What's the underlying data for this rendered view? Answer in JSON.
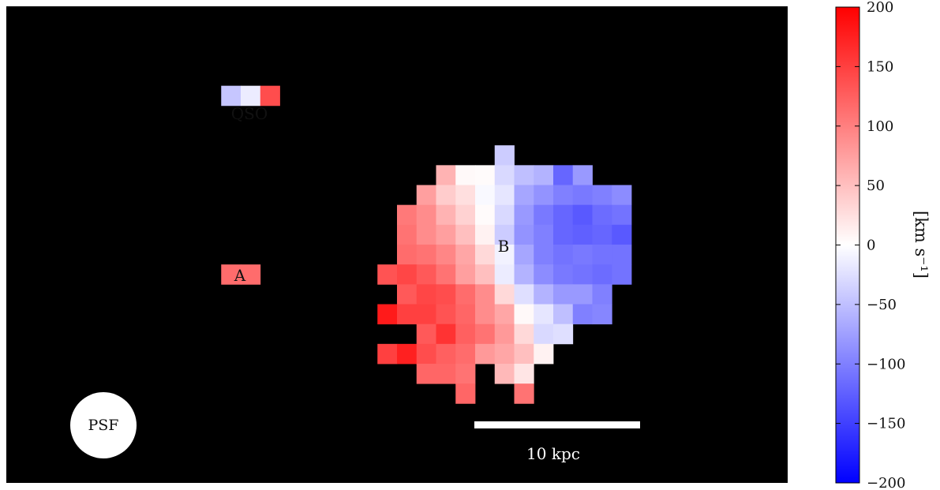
{
  "chart_data": {
    "type": "heatmap",
    "title": "",
    "colorbar": {
      "label": "[km s⁻¹]",
      "range": [
        -200,
        200
      ],
      "ticks": [
        200,
        150,
        100,
        50,
        0,
        -50,
        -100,
        -150,
        -200
      ],
      "tick_labels": [
        "200",
        "150",
        "100",
        "50",
        "0",
        "−50",
        "−100",
        "−150",
        "−200"
      ],
      "colormap": "bwr",
      "color_low": "#0000ff",
      "color_mid": "#ffffff",
      "color_high": "#ff0000"
    },
    "background_color": "#000000",
    "grid": false,
    "grid_size": [
      40,
      24
    ],
    "cells": [
      [
        25,
        7,
        -40
      ],
      [
        22,
        8,
        60
      ],
      [
        23,
        8,
        5
      ],
      [
        24,
        8,
        3
      ],
      [
        25,
        8,
        -30
      ],
      [
        26,
        8,
        -50
      ],
      [
        27,
        8,
        -60
      ],
      [
        28,
        8,
        -120
      ],
      [
        29,
        8,
        -80
      ],
      [
        21,
        9,
        75
      ],
      [
        22,
        9,
        40
      ],
      [
        23,
        9,
        25
      ],
      [
        24,
        9,
        -5
      ],
      [
        25,
        9,
        -20
      ],
      [
        26,
        9,
        -70
      ],
      [
        27,
        9,
        -85
      ],
      [
        28,
        9,
        -100
      ],
      [
        29,
        9,
        -105
      ],
      [
        30,
        9,
        -100
      ],
      [
        31,
        9,
        -90
      ],
      [
        20,
        10,
        105
      ],
      [
        21,
        10,
        90
      ],
      [
        22,
        10,
        60
      ],
      [
        23,
        10,
        35
      ],
      [
        24,
        10,
        3
      ],
      [
        25,
        10,
        -30
      ],
      [
        26,
        10,
        -80
      ],
      [
        27,
        10,
        -105
      ],
      [
        28,
        10,
        -120
      ],
      [
        29,
        10,
        -130
      ],
      [
        30,
        10,
        -115
      ],
      [
        31,
        10,
        -110
      ],
      [
        20,
        11,
        110
      ],
      [
        21,
        11,
        90
      ],
      [
        22,
        11,
        75
      ],
      [
        23,
        11,
        50
      ],
      [
        24,
        11,
        10
      ],
      [
        25,
        11,
        -40
      ],
      [
        26,
        11,
        -85
      ],
      [
        27,
        11,
        -100
      ],
      [
        28,
        11,
        -120
      ],
      [
        29,
        11,
        -125
      ],
      [
        30,
        11,
        -120
      ],
      [
        31,
        11,
        -130
      ],
      [
        20,
        12,
        115
      ],
      [
        21,
        12,
        110
      ],
      [
        22,
        12,
        95
      ],
      [
        23,
        12,
        70
      ],
      [
        24,
        12,
        30
      ],
      [
        25,
        12,
        -10
      ],
      [
        26,
        12,
        -70
      ],
      [
        27,
        12,
        -100
      ],
      [
        28,
        12,
        -110
      ],
      [
        29,
        12,
        -105
      ],
      [
        30,
        12,
        -110
      ],
      [
        31,
        12,
        -110
      ],
      [
        19,
        13,
        135
      ],
      [
        20,
        13,
        145
      ],
      [
        21,
        13,
        130
      ],
      [
        22,
        13,
        110
      ],
      [
        23,
        13,
        75
      ],
      [
        24,
        13,
        50
      ],
      [
        25,
        13,
        -15
      ],
      [
        26,
        13,
        -60
      ],
      [
        27,
        13,
        -90
      ],
      [
        28,
        13,
        -105
      ],
      [
        29,
        13,
        -110
      ],
      [
        30,
        13,
        -115
      ],
      [
        31,
        13,
        -110
      ],
      [
        20,
        14,
        130
      ],
      [
        21,
        14,
        145
      ],
      [
        22,
        14,
        140
      ],
      [
        23,
        14,
        115
      ],
      [
        24,
        14,
        90
      ],
      [
        25,
        14,
        30
      ],
      [
        26,
        14,
        -25
      ],
      [
        27,
        14,
        -60
      ],
      [
        28,
        14,
        -80
      ],
      [
        29,
        14,
        -80
      ],
      [
        30,
        14,
        -100
      ],
      [
        19,
        15,
        180
      ],
      [
        20,
        15,
        150
      ],
      [
        21,
        15,
        150
      ],
      [
        22,
        15,
        135
      ],
      [
        23,
        15,
        120
      ],
      [
        24,
        15,
        90
      ],
      [
        25,
        15,
        70
      ],
      [
        26,
        15,
        5
      ],
      [
        27,
        15,
        -20
      ],
      [
        28,
        15,
        -50
      ],
      [
        29,
        15,
        -100
      ],
      [
        30,
        15,
        -95
      ],
      [
        21,
        16,
        130
      ],
      [
        22,
        16,
        160
      ],
      [
        23,
        16,
        125
      ],
      [
        24,
        16,
        110
      ],
      [
        25,
        16,
        80
      ],
      [
        26,
        16,
        30
      ],
      [
        27,
        16,
        -30
      ],
      [
        28,
        16,
        -25
      ],
      [
        19,
        17,
        150
      ],
      [
        20,
        17,
        175
      ],
      [
        21,
        17,
        140
      ],
      [
        22,
        17,
        125
      ],
      [
        23,
        17,
        115
      ],
      [
        24,
        17,
        80
      ],
      [
        25,
        17,
        70
      ],
      [
        26,
        17,
        50
      ],
      [
        27,
        17,
        10
      ],
      [
        21,
        18,
        120
      ],
      [
        22,
        18,
        120
      ],
      [
        23,
        18,
        110
      ],
      [
        25,
        18,
        55
      ],
      [
        26,
        18,
        20
      ],
      [
        23,
        19,
        120
      ],
      [
        26,
        19,
        110
      ]
    ],
    "labels": [
      "QSO",
      "A",
      "B"
    ],
    "sources": [
      {
        "label": "QSO",
        "cells": [
          [
            11,
            4,
            -45
          ],
          [
            12,
            4,
            -15
          ],
          [
            13,
            4,
            140
          ]
        ]
      },
      {
        "label": "A",
        "cells": [
          [
            11,
            13,
            115
          ],
          [
            12,
            13,
            115
          ]
        ]
      }
    ],
    "psf_label": "PSF",
    "scale_bar_label": "10 kpc"
  }
}
